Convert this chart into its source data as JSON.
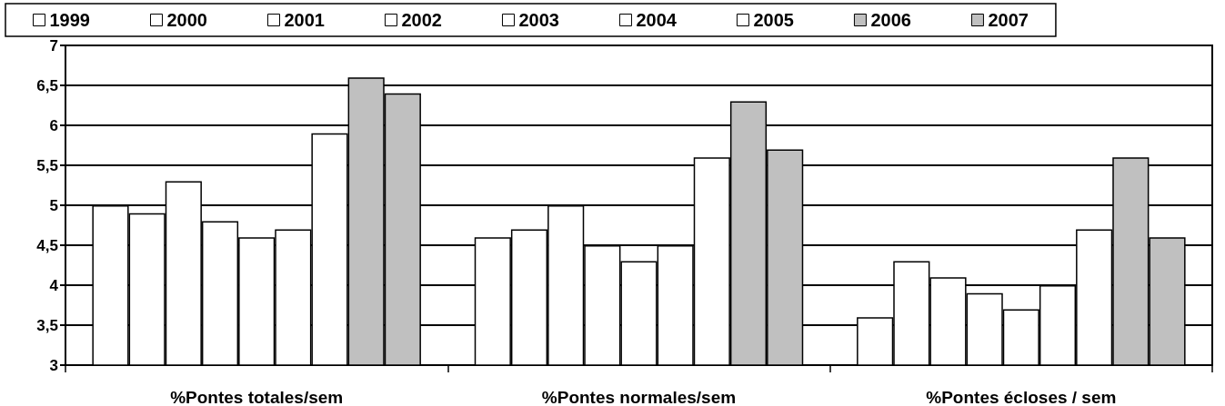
{
  "chart_data": {
    "type": "bar",
    "categories": [
      "%Pontes totales/sem",
      "%Pontes normales/sem",
      "%Pontes écloses / sem"
    ],
    "series": [
      {
        "name": "1999",
        "color": "#ffffff",
        "values": [
          5.0,
          4.6,
          3.6
        ]
      },
      {
        "name": "2000",
        "color": "#ffffff",
        "values": [
          4.9,
          4.7,
          4.3
        ]
      },
      {
        "name": "2001",
        "color": "#ffffff",
        "values": [
          5.3,
          5.0,
          4.1
        ]
      },
      {
        "name": "2002",
        "color": "#ffffff",
        "values": [
          4.8,
          4.5,
          3.9
        ]
      },
      {
        "name": "2003",
        "color": "#ffffff",
        "values": [
          4.6,
          4.3,
          3.7
        ]
      },
      {
        "name": "2004",
        "color": "#ffffff",
        "values": [
          4.7,
          4.5,
          4.0
        ]
      },
      {
        "name": "2005",
        "color": "#ffffff",
        "values": [
          5.9,
          5.6,
          4.7
        ]
      },
      {
        "name": "2006",
        "color": "#c0c0c0",
        "values": [
          6.6,
          6.3,
          5.6
        ]
      },
      {
        "name": "2007",
        "color": "#c0c0c0",
        "values": [
          6.4,
          5.7,
          4.6
        ]
      }
    ],
    "ylim": [
      3,
      7
    ],
    "yticks": [
      3,
      {
        "value": 3.5,
        "label": "3,5"
      },
      4,
      {
        "value": 4.5,
        "label": "4,5"
      },
      5,
      {
        "value": 5.5,
        "label": "5,5"
      },
      6,
      {
        "value": 6.5,
        "label": "6,5"
      },
      7
    ],
    "grid": "y",
    "legend": "top"
  }
}
